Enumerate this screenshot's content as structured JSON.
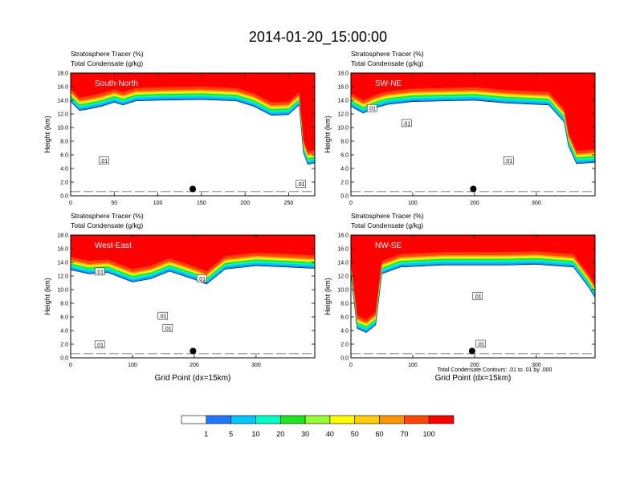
{
  "figure_title": "2014-01-20_15:00:00",
  "shared_xlabel": "Grid Point (dx=15km)",
  "contour_note": "Total Condensate Contours: .01 to .01 by .000",
  "colorbar": {
    "labels": [
      "1",
      "5",
      "10",
      "20",
      "30",
      "40",
      "50",
      "60",
      "70",
      "100"
    ],
    "colors": [
      "#ffffff",
      "#1e78ff",
      "#00c8ff",
      "#00ffc8",
      "#1ee61e",
      "#96ff32",
      "#ffff00",
      "#ffcd00",
      "#ff9600",
      "#ff4600",
      "#ff0000"
    ]
  },
  "chart_data": [
    {
      "type": "heatmap",
      "title_line1": "Stratosphere Tracer   (%)",
      "title_line2": "Total Condensate   (g/kg)",
      "panel_label": "South-North",
      "ylabel": "Height (km)",
      "xlabel": "",
      "xlim": [
        0,
        280
      ],
      "ylim": [
        0,
        18
      ],
      "xticks": [
        0,
        50,
        100,
        150,
        200,
        250
      ],
      "yticks": [
        "0.0",
        "2.0",
        "4.0",
        "6.0",
        "8.0",
        "10.0",
        "12.0",
        "14.0",
        "16.0",
        "18.0"
      ],
      "tropopause_km": [
        [
          0,
          15.5
        ],
        [
          10,
          14.2
        ],
        [
          20,
          14.4
        ],
        [
          35,
          14.8
        ],
        [
          50,
          15.4
        ],
        [
          60,
          15.0
        ],
        [
          75,
          15.6
        ],
        [
          100,
          15.7
        ],
        [
          150,
          15.8
        ],
        [
          190,
          15.6
        ],
        [
          210,
          14.8
        ],
        [
          230,
          13.5
        ],
        [
          250,
          13.6
        ],
        [
          262,
          15.0
        ],
        [
          267,
          8.0
        ],
        [
          272,
          6.3
        ],
        [
          280,
          6.5
        ]
      ],
      "contour_labels": [
        {
          "text": ".01",
          "x": 38,
          "y": 5.1
        },
        {
          "text": ".01",
          "x": 264,
          "y": 1.7
        }
      ],
      "marker": {
        "x": 140,
        "y": 1.0
      }
    },
    {
      "type": "heatmap",
      "title_line1": "Stratosphere Tracer   (%)",
      "title_line2": "Total Condensate   (g/kg)",
      "panel_label": "SW-NE",
      "ylabel": "Height (km)",
      "xlabel": "",
      "xlim": [
        0,
        395
      ],
      "ylim": [
        0,
        18
      ],
      "xticks": [
        0,
        100,
        200,
        300
      ],
      "yticks": [
        "0.0",
        "2.0",
        "4.0",
        "6.0",
        "8.0",
        "10.0",
        "12.0",
        "14.0",
        "16.0",
        "18.0"
      ],
      "tropopause_km": [
        [
          0,
          14.8
        ],
        [
          20,
          13.8
        ],
        [
          40,
          14.6
        ],
        [
          60,
          15.1
        ],
        [
          100,
          15.5
        ],
        [
          150,
          15.6
        ],
        [
          200,
          15.7
        ],
        [
          250,
          15.3
        ],
        [
          320,
          15.0
        ],
        [
          345,
          12.5
        ],
        [
          352,
          9.0
        ],
        [
          365,
          6.4
        ],
        [
          395,
          6.6
        ]
      ],
      "contour_labels": [
        {
          "text": ".01",
          "x": 34,
          "y": 12.8
        },
        {
          "text": ".01",
          "x": 90,
          "y": 10.6
        },
        {
          "text": ".01",
          "x": 255,
          "y": 5.1
        }
      ],
      "marker": {
        "x": 198,
        "y": 1.0
      }
    },
    {
      "type": "heatmap",
      "title_line1": "Stratosphere Tracer   (%)",
      "title_line2": "Total Condensate   (g/kg)",
      "panel_label": "West-East",
      "ylabel": "Height (km)",
      "xlabel": "Grid Point (dx=15km)",
      "xlim": [
        0,
        395
      ],
      "ylim": [
        0,
        18
      ],
      "xticks": [
        0,
        100,
        200,
        300
      ],
      "yticks": [
        "0.0",
        "2.0",
        "4.0",
        "6.0",
        "8.0",
        "10.0",
        "12.0",
        "14.0",
        "16.0",
        "18.0"
      ],
      "tropopause_km": [
        [
          0,
          14.6
        ],
        [
          30,
          14.0
        ],
        [
          60,
          14.2
        ],
        [
          100,
          12.8
        ],
        [
          130,
          13.3
        ],
        [
          160,
          14.4
        ],
        [
          200,
          13.2
        ],
        [
          220,
          12.5
        ],
        [
          250,
          14.7
        ],
        [
          300,
          15.2
        ],
        [
          350,
          15.0
        ],
        [
          395,
          14.8
        ]
      ],
      "contour_labels": [
        {
          "text": ".01",
          "x": 47,
          "y": 12.6
        },
        {
          "text": ".01",
          "x": 212,
          "y": 11.6
        },
        {
          "text": ".01",
          "x": 149,
          "y": 6.1
        },
        {
          "text": ".01",
          "x": 157,
          "y": 4.3
        },
        {
          "text": ".01",
          "x": 47,
          "y": 1.9
        }
      ],
      "marker": {
        "x": 198,
        "y": 1.0
      }
    },
    {
      "type": "heatmap",
      "title_line1": "Stratosphere Tracer   (%)",
      "title_line2": "Total Condensate   (g/kg)",
      "panel_label": "NW-SE",
      "ylabel": "Height (km)",
      "xlabel": "Grid Point (dx=15km)",
      "xlim": [
        0,
        395
      ],
      "ylim": [
        0,
        18
      ],
      "xticks": [
        0,
        100,
        200,
        300
      ],
      "yticks": [
        "0.0",
        "2.0",
        "4.0",
        "6.0",
        "8.0",
        "10.0",
        "12.0",
        "14.0",
        "16.0",
        "18.0"
      ],
      "tropopause_km": [
        [
          0,
          14.0
        ],
        [
          10,
          6.0
        ],
        [
          25,
          5.4
        ],
        [
          40,
          6.5
        ],
        [
          50,
          14.0
        ],
        [
          80,
          15.0
        ],
        [
          150,
          15.3
        ],
        [
          250,
          15.3
        ],
        [
          300,
          15.4
        ],
        [
          360,
          15.0
        ],
        [
          385,
          12.0
        ],
        [
          395,
          10.5
        ]
      ],
      "contour_labels": [
        {
          "text": ".01",
          "x": 205,
          "y": 9.0
        },
        {
          "text": ".01",
          "x": 210,
          "y": 2.0
        }
      ],
      "marker": {
        "x": 196,
        "y": 1.0
      }
    }
  ]
}
